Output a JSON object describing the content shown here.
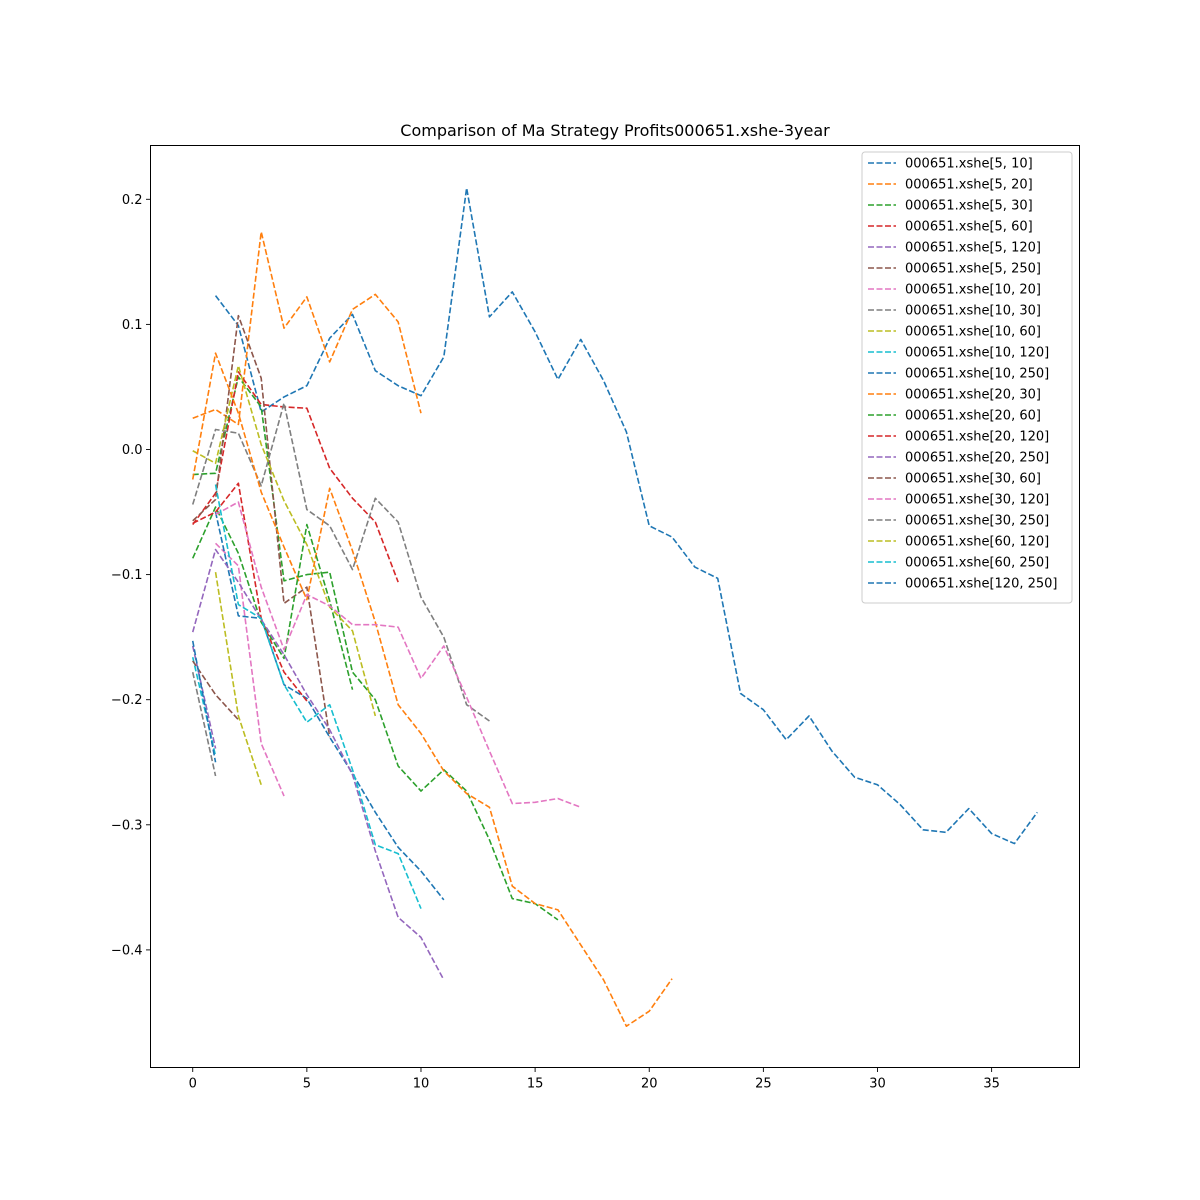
{
  "chart_data": {
    "type": "line",
    "title": "Comparison of Ma Strategy Profits000651.xshe-3year",
    "xlabel": "",
    "ylabel": "",
    "xlim": [
      -1.85,
      38.85
    ],
    "ylim": [
      -0.494,
      0.243
    ],
    "x_ticks": [
      0,
      5,
      10,
      15,
      20,
      25,
      30,
      35
    ],
    "x_tick_labels": [
      "0",
      "5",
      "10",
      "15",
      "20",
      "25",
      "30",
      "35"
    ],
    "y_ticks": [
      -0.4,
      -0.3,
      -0.2,
      -0.1,
      0.0,
      0.1,
      0.2
    ],
    "y_tick_labels": [
      "−0.4",
      "−0.3",
      "−0.2",
      "−0.1",
      "0.0",
      "0.1",
      "0.2"
    ],
    "grid": false,
    "legend_position": "top-right",
    "line_style": "dashed",
    "series": [
      {
        "name": "000651.xshe[5, 10]",
        "color": "#1f77b4",
        "x": [
          1,
          2,
          3,
          4,
          5,
          6,
          7,
          8,
          9,
          10,
          11,
          12,
          13,
          14,
          15,
          16,
          17,
          18,
          19,
          20,
          21,
          22,
          23,
          24,
          25,
          26,
          27,
          28,
          29,
          30,
          31,
          32,
          33,
          34,
          35,
          36,
          37
        ],
        "values": [
          0.123,
          0.099,
          0.03,
          0.042,
          0.051,
          0.089,
          0.108,
          0.063,
          0.051,
          0.043,
          0.074,
          0.209,
          0.106,
          0.126,
          0.094,
          0.056,
          0.088,
          0.055,
          0.014,
          -0.061,
          -0.07,
          -0.094,
          -0.103,
          -0.195,
          -0.208,
          -0.232,
          -0.213,
          -0.241,
          -0.262,
          -0.268,
          -0.284,
          -0.304,
          -0.306,
          -0.287,
          -0.307,
          -0.315,
          -0.29
        ]
      },
      {
        "name": "000651.xshe[5, 20]",
        "color": "#ff7f0e",
        "x": [
          0,
          1,
          2,
          3,
          4,
          5,
          6,
          7,
          8,
          9,
          10
        ],
        "values": [
          0.025,
          0.032,
          0.02,
          0.174,
          0.097,
          0.122,
          0.07,
          0.112,
          0.124,
          0.102,
          0.029
        ]
      },
      {
        "name": "000651.xshe[5, 30]",
        "color": "#2ca02c",
        "x": [
          0,
          1,
          2,
          3,
          4,
          5,
          6,
          7,
          8,
          9,
          10,
          11,
          12,
          13,
          14,
          15,
          16
        ],
        "values": [
          -0.02,
          -0.019,
          0.058,
          0.034,
          -0.105,
          -0.1,
          -0.098,
          -0.178,
          -0.2,
          -0.253,
          -0.273,
          -0.256,
          -0.273,
          -0.312,
          -0.359,
          -0.363,
          -0.376
        ]
      },
      {
        "name": "000651.xshe[5, 60]",
        "color": "#d62728",
        "x": [
          0,
          1,
          2,
          3,
          4,
          5,
          6,
          7,
          8,
          9
        ],
        "values": [
          -0.06,
          -0.035,
          0.062,
          0.036,
          0.034,
          0.033,
          -0.015,
          -0.039,
          -0.058,
          -0.106
        ]
      },
      {
        "name": "000651.xshe[5, 120]",
        "color": "#9467bd",
        "x": [
          0,
          1
        ],
        "values": [
          -0.157,
          -0.239
        ]
      },
      {
        "name": "000651.xshe[5, 250]",
        "color": "#8c564b",
        "x": [
          0,
          1,
          2,
          3,
          4,
          5,
          6
        ],
        "values": [
          -0.057,
          -0.04,
          0.107,
          0.057,
          -0.123,
          -0.11,
          -0.23
        ]
      },
      {
        "name": "000651.xshe[10, 20]",
        "color": "#e377c2",
        "x": [
          1,
          2,
          3,
          4
        ],
        "values": [
          -0.075,
          -0.093,
          -0.235,
          -0.277
        ]
      },
      {
        "name": "000651.xshe[10, 30]",
        "color": "#7f7f7f",
        "x": [
          0,
          1,
          2,
          3,
          4,
          5,
          6,
          7,
          8,
          9,
          10,
          11,
          12,
          13
        ],
        "values": [
          -0.044,
          0.016,
          0.013,
          -0.029,
          0.037,
          -0.048,
          -0.061,
          -0.096,
          -0.039,
          -0.058,
          -0.118,
          -0.15,
          -0.204,
          -0.217
        ]
      },
      {
        "name": "000651.xshe[10, 60]",
        "color": "#bcbd22",
        "x": [
          0,
          1,
          2,
          3,
          4,
          5,
          6,
          7,
          8
        ],
        "values": [
          -0.001,
          -0.011,
          0.067,
          0.004,
          -0.041,
          -0.076,
          -0.126,
          -0.145,
          -0.213
        ]
      },
      {
        "name": "000651.xshe[10, 120]",
        "color": "#17becf",
        "x": [
          0,
          1
        ],
        "values": [
          -0.166,
          -0.245
        ]
      },
      {
        "name": "000651.xshe[10, 250]",
        "color": "#1f77b4",
        "x": [
          1,
          2,
          3,
          4,
          5,
          6,
          7,
          8,
          9,
          10,
          11
        ],
        "values": [
          -0.05,
          -0.133,
          -0.135,
          -0.188,
          -0.199,
          -0.23,
          -0.259,
          -0.29,
          -0.318,
          -0.337,
          -0.36
        ]
      },
      {
        "name": "000651.xshe[20, 30]",
        "color": "#ff7f0e",
        "x": [
          0,
          1,
          2,
          3,
          4,
          5,
          6,
          7,
          8,
          9,
          10,
          11,
          12,
          13,
          14,
          15,
          16,
          17,
          18,
          19,
          20,
          21
        ],
        "values": [
          -0.024,
          0.077,
          0.029,
          -0.034,
          -0.078,
          -0.12,
          -0.031,
          -0.081,
          -0.138,
          -0.204,
          -0.227,
          -0.257,
          -0.275,
          -0.286,
          -0.349,
          -0.363,
          -0.368,
          -0.396,
          -0.424,
          -0.461,
          -0.449,
          -0.423
        ]
      },
      {
        "name": "000651.xshe[20, 60]",
        "color": "#2ca02c",
        "x": [
          0,
          1,
          2,
          3,
          4,
          5,
          6,
          7
        ],
        "values": [
          -0.087,
          -0.046,
          -0.083,
          -0.138,
          -0.167,
          -0.06,
          -0.121,
          -0.192
        ]
      },
      {
        "name": "000651.xshe[20, 120]",
        "color": "#d62728",
        "x": [
          0,
          1,
          2,
          3,
          4,
          5
        ],
        "values": [
          -0.059,
          -0.05,
          -0.027,
          -0.135,
          -0.178,
          -0.201
        ]
      },
      {
        "name": "000651.xshe[20, 250]",
        "color": "#9467bd",
        "x": [
          0,
          1,
          2,
          3,
          4,
          5,
          6,
          7,
          8,
          9,
          10,
          11
        ],
        "values": [
          -0.146,
          -0.08,
          -0.106,
          -0.136,
          -0.164,
          -0.196,
          -0.224,
          -0.26,
          -0.321,
          -0.374,
          -0.39,
          -0.424
        ]
      },
      {
        "name": "000651.xshe[30, 60]",
        "color": "#8c564b",
        "x": [
          0,
          1,
          2
        ],
        "values": [
          -0.169,
          -0.196,
          -0.216
        ]
      },
      {
        "name": "000651.xshe[30, 120]",
        "color": "#e377c2",
        "x": [
          1,
          2,
          3,
          4,
          5,
          6,
          7,
          8,
          9,
          10,
          11,
          12,
          13,
          14,
          15,
          16,
          17
        ],
        "values": [
          -0.052,
          -0.042,
          -0.11,
          -0.16,
          -0.116,
          -0.125,
          -0.14,
          -0.14,
          -0.142,
          -0.183,
          -0.157,
          -0.198,
          -0.241,
          -0.283,
          -0.282,
          -0.279,
          -0.286
        ]
      },
      {
        "name": "000651.xshe[30, 250]",
        "color": "#7f7f7f",
        "x": [
          0,
          1
        ],
        "values": [
          -0.178,
          -0.261
        ]
      },
      {
        "name": "000651.xshe[60, 120]",
        "color": "#bcbd22",
        "x": [
          1,
          2,
          3
        ],
        "values": [
          -0.098,
          -0.213,
          -0.268
        ]
      },
      {
        "name": "000651.xshe[60, 250]",
        "color": "#17becf",
        "x": [
          1,
          2,
          3,
          4,
          5,
          6,
          7,
          8,
          9,
          10
        ],
        "values": [
          -0.028,
          -0.124,
          -0.135,
          -0.188,
          -0.218,
          -0.204,
          -0.256,
          -0.316,
          -0.323,
          -0.367
        ]
      },
      {
        "name": "000651.xshe[120, 250]",
        "color": "#1f77b4",
        "x": [
          0,
          1
        ],
        "values": [
          -0.153,
          -0.25
        ]
      }
    ]
  }
}
